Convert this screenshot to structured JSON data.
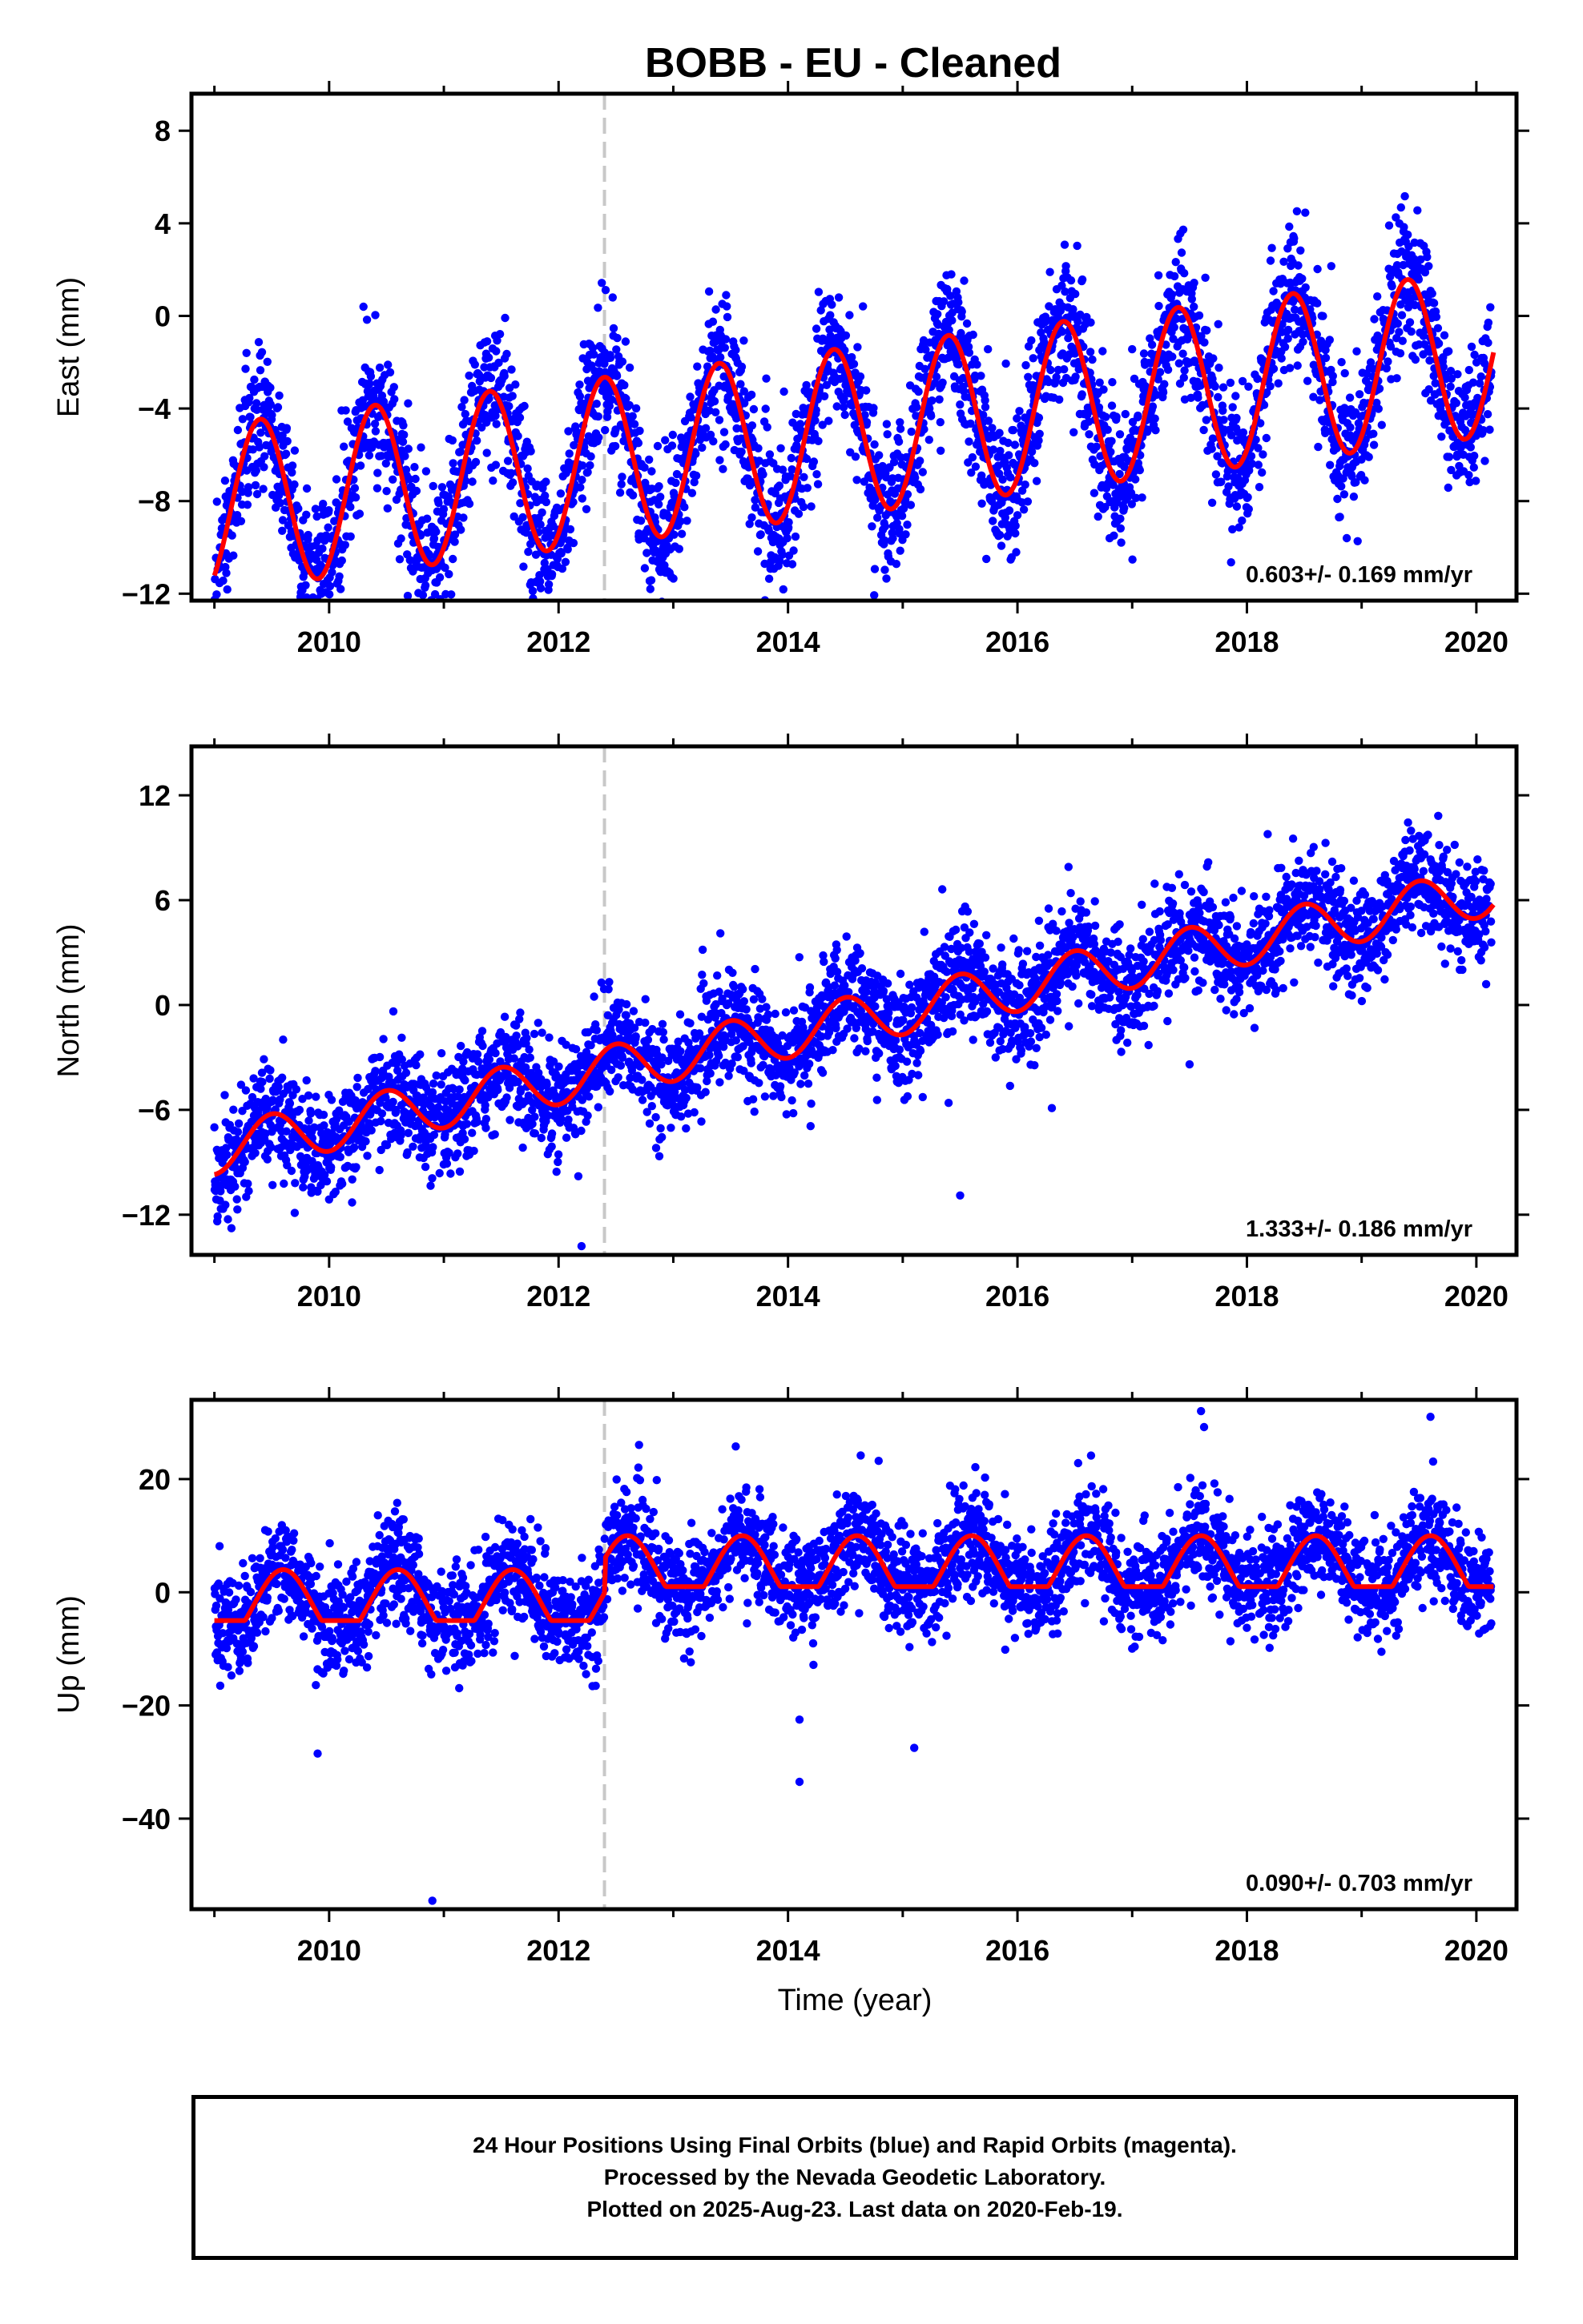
{
  "title": "BOBB  - EU - Cleaned",
  "xlabel": "Time (year)",
  "caption": [
    "24 Hour Positions Using Final Orbits (blue) and Rapid Orbits (magenta).",
    "Processed by the Nevada Geodetic Laboratory.",
    "Plotted on 2025-Aug-23. Last data on 2020-Feb-19."
  ],
  "colors": {
    "points": "#0000ff",
    "model": "#ff0000",
    "marker_line": "#c8c8c8"
  },
  "chart_data": [
    {
      "type": "scatter",
      "component": "East",
      "ylabel": "East (mm)",
      "xlim": [
        2008.8,
        2020.35
      ],
      "ylim": [
        -12.3,
        9.6
      ],
      "yticks": [
        8,
        4,
        0,
        -4,
        -8,
        -12
      ],
      "xticks": [
        2010,
        2012,
        2014,
        2016,
        2018,
        2020
      ],
      "rate_label": "0.603+/- 0.169 mm/yr",
      "model": {
        "offset": -8.3,
        "rate": 0.603,
        "annual_amp": 3.6,
        "annual_phase_year": 2009.4,
        "periodic": false,
        "end": 2020.15
      },
      "scatter_sigma": 1.5,
      "outliers": [
        [
          2009.9,
          -9.7
        ],
        [
          2012.7,
          -9.4
        ],
        [
          2012.8,
          -11.8
        ],
        [
          2016.0,
          -7.1
        ],
        [
          2017.9,
          -6.5
        ]
      ],
      "step_marker": 2012.4
    },
    {
      "type": "scatter",
      "component": "North",
      "ylabel": "North (mm)",
      "xlim": [
        2008.8,
        2020.35
      ],
      "ylim": [
        -14.3,
        14.8
      ],
      "yticks": [
        12,
        6,
        0,
        -6,
        -12
      ],
      "xticks": [
        2010,
        2012,
        2014,
        2016,
        2018,
        2020
      ],
      "rate_label": "1.333+/- 0.186 mm/yr",
      "model": {
        "offset": -8.3,
        "rate": 1.333,
        "annual_amp": 1.4,
        "annual_phase_year": 2009.5,
        "periodic": false,
        "end": 2020.15
      },
      "scatter_sigma": 1.5,
      "outliers": [
        [
          2009.2,
          -11.7
        ],
        [
          2009.7,
          -11.9
        ],
        [
          2010.2,
          -11.3
        ],
        [
          2012.2,
          -13.8
        ],
        [
          2015.5,
          -10.9
        ],
        [
          2015.4,
          -5.6
        ],
        [
          2016.3,
          -5.9
        ],
        [
          2017.5,
          -3.4
        ]
      ],
      "step_marker": 2012.4
    },
    {
      "type": "scatter",
      "component": "Up",
      "ylabel": "Up (mm)",
      "xlim": [
        2008.8,
        2020.35
      ],
      "ylim": [
        -56,
        34
      ],
      "yticks": [
        20,
        0,
        -20,
        -40
      ],
      "xticks": [
        2010,
        2012,
        2014,
        2016,
        2018,
        2020
      ],
      "rate_label": "0.090+/- 0.703 mm/yr",
      "model": {
        "segments": [
          {
            "start": 2009.0,
            "end": 2012.4,
            "mid": -2.0,
            "amp": 6.0
          },
          {
            "start": 2012.4,
            "end": 2020.15,
            "mid": 4.0,
            "amp": 6.0
          }
        ],
        "annual_phase_year": 2009.6,
        "periodic": true
      },
      "scatter_sigma": 4.5,
      "outliers": [
        [
          2009.9,
          -28.5
        ],
        [
          2010.9,
          -54.5
        ],
        [
          2014.1,
          -33.5
        ],
        [
          2014.1,
          -22.5
        ],
        [
          2015.1,
          -27.5
        ],
        [
          2017.6,
          32.0
        ],
        [
          2019.6,
          31.0
        ]
      ],
      "step_marker": 2012.4
    }
  ]
}
